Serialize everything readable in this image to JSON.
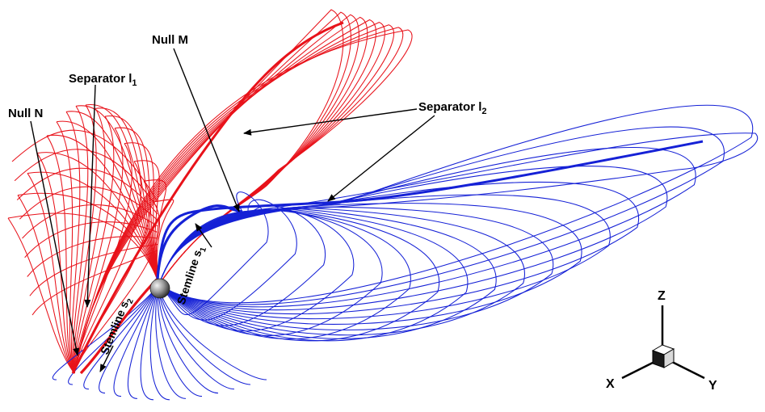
{
  "labels": {
    "null_n": "Null N",
    "separator_l1": "Separator l",
    "separator_l1_sub": "1",
    "null_m": "Null M",
    "separator_l2": "Separator l",
    "separator_l2_sub": "2",
    "stemline_s1": "Stemline s",
    "stemline_s1_sub": "1",
    "stemline_s2": "Stemline s",
    "stemline_s2_sub": "2"
  },
  "axes": {
    "z": "Z",
    "x": "X",
    "y": "Y"
  },
  "colors": {
    "red_field": "#e8121a",
    "blue_field": "#1521d6",
    "arrow": "#000000"
  }
}
